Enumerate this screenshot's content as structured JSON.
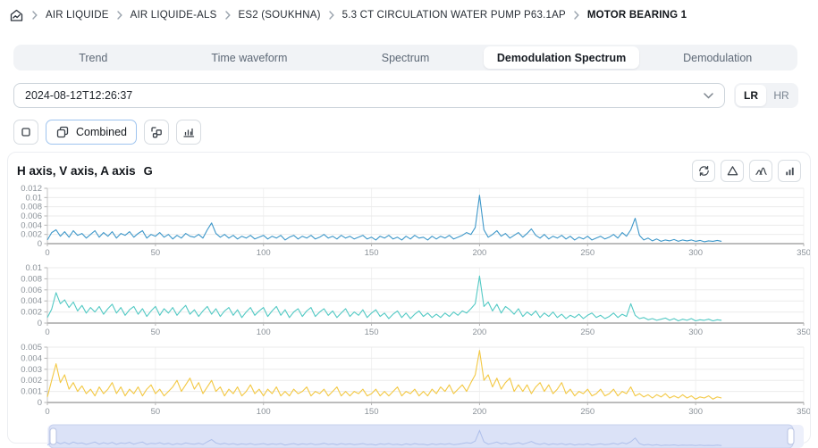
{
  "breadcrumb": {
    "items": [
      "AIR LIQUIDE",
      "AIR LIQUIDE-ALS",
      "ES2 (SOUKHNA)",
      "5.3 CT CIRCULATION WATER PUMP P63.1AP",
      "MOTOR BEARING 1"
    ]
  },
  "tabs": [
    {
      "label": "Trend",
      "active": false
    },
    {
      "label": "Time waveform",
      "active": false
    },
    {
      "label": "Spectrum",
      "active": false
    },
    {
      "label": "Demodulation Spectrum",
      "active": true
    },
    {
      "label": "Demodulation",
      "active": false
    }
  ],
  "datetime_select": {
    "value": "2024-08-12T12:26:37"
  },
  "resolution_toggle": {
    "options": [
      "LR",
      "HR"
    ],
    "selected": "LR"
  },
  "view_toolbar": {
    "combined_label": "Combined"
  },
  "chart_header": {
    "title": "H axis, V axis, A axis",
    "unit": "G"
  },
  "icons": {
    "breadcrumb_home": "home-chart",
    "crumb_separator": "chevron-right",
    "select_caret": "chevron-down",
    "view_buttons": [
      "single-view",
      "combined-view",
      "cascade-view",
      "waterfall-view"
    ],
    "header_actions": [
      "refresh",
      "triangle-alarm",
      "peaks-overlay",
      "bar-chart"
    ]
  },
  "colors": {
    "series_h": "#3d97c9",
    "series_v": "#52c9c4",
    "series_a": "#f3c843",
    "grid": "#ebebeb",
    "axis": "#a6a6a6",
    "tick_text": "#8b9299",
    "brush_fill": "#dbe2f7",
    "brush_border": "#c7d1ee",
    "brush_line": "#a9bbe9",
    "accent": "#9fc4ef"
  },
  "chart_data": [
    {
      "type": "line",
      "name": "H axis",
      "unit": "G",
      "color": "#3d97c9",
      "xlim": [
        0,
        350
      ],
      "xticks": [
        0,
        50,
        100,
        150,
        200,
        250,
        300,
        350
      ],
      "ymax": 0.012,
      "ytick_labels": [
        "0.012",
        "0.01",
        "0.008",
        "0.006",
        "0.004",
        "0.002",
        "0"
      ],
      "x_start": 0,
      "x_step": 2,
      "value_scale": 0.0001,
      "values": [
        8,
        24,
        30,
        16,
        26,
        14,
        28,
        18,
        22,
        12,
        20,
        28,
        14,
        24,
        16,
        26,
        12,
        22,
        18,
        26,
        14,
        22,
        28,
        12,
        20,
        16,
        24,
        14,
        20,
        10,
        18,
        12,
        22,
        16,
        14,
        20,
        12,
        30,
        45,
        22,
        14,
        20,
        12,
        18,
        10,
        16,
        12,
        18,
        10,
        14,
        18,
        10,
        16,
        12,
        18,
        8,
        14,
        18,
        10,
        16,
        12,
        18,
        10,
        14,
        20,
        12,
        16,
        10,
        18,
        12,
        16,
        10,
        14,
        18,
        10,
        14,
        8,
        16,
        12,
        18,
        10,
        14,
        8,
        16,
        10,
        18,
        12,
        14,
        8,
        16,
        10,
        16,
        12,
        18,
        10,
        14,
        18,
        24,
        20,
        35,
        105,
        30,
        14,
        20,
        28,
        16,
        22,
        12,
        18,
        24,
        14,
        22,
        32,
        18,
        12,
        20,
        10,
        16,
        12,
        18,
        10,
        16,
        8,
        14,
        10,
        16,
        8,
        12,
        16,
        10,
        14,
        20,
        12,
        24,
        16,
        30,
        55,
        18,
        8,
        12,
        6,
        10,
        5,
        8,
        6,
        9,
        5,
        8,
        6,
        8,
        5,
        7,
        4,
        6,
        5,
        7,
        5
      ],
      "notable_peaks": [
        {
          "x": 200,
          "y": 0.0105
        },
        {
          "x": 272,
          "y": 0.0055
        },
        {
          "x": 76,
          "y": 0.0045
        },
        {
          "x": 224,
          "y": 0.0032
        }
      ]
    },
    {
      "type": "line",
      "name": "V axis",
      "unit": "G",
      "color": "#52c9c4",
      "xlim": [
        0,
        350
      ],
      "xticks": [
        0,
        50,
        100,
        150,
        200,
        250,
        300,
        350
      ],
      "ymax": 0.01,
      "ytick_labels": [
        "0.01",
        "0.008",
        "0.006",
        "0.004",
        "0.002",
        "0"
      ],
      "x_start": 0,
      "x_step": 2,
      "value_scale": 0.0001,
      "values": [
        10,
        25,
        55,
        35,
        42,
        28,
        38,
        22,
        32,
        18,
        28,
        20,
        30,
        16,
        26,
        34,
        18,
        28,
        14,
        24,
        30,
        16,
        26,
        12,
        22,
        30,
        14,
        26,
        18,
        28,
        14,
        24,
        32,
        16,
        24,
        12,
        22,
        30,
        16,
        26,
        12,
        22,
        28,
        14,
        24,
        10,
        20,
        28,
        14,
        22,
        28,
        12,
        22,
        30,
        14,
        24,
        10,
        20,
        26,
        12,
        22,
        28,
        12,
        20,
        26,
        14,
        22,
        10,
        18,
        26,
        12,
        20,
        14,
        24,
        10,
        18,
        24,
        12,
        18,
        8,
        16,
        22,
        10,
        18,
        8,
        16,
        22,
        12,
        18,
        10,
        16,
        10,
        18,
        12,
        20,
        14,
        22,
        18,
        26,
        35,
        85,
        30,
        38,
        22,
        34,
        18,
        30,
        24,
        16,
        26,
        12,
        20,
        14,
        22,
        10,
        18,
        12,
        20,
        10,
        16,
        8,
        14,
        10,
        16,
        8,
        14,
        18,
        10,
        14,
        8,
        12,
        18,
        10,
        16,
        12,
        35,
        14,
        8,
        10,
        6,
        8,
        5,
        7,
        9,
        5,
        8,
        4,
        7,
        5,
        8,
        4,
        6,
        5,
        7,
        4,
        6,
        5
      ],
      "notable_peaks": [
        {
          "x": 200,
          "y": 0.0085
        },
        {
          "x": 4,
          "y": 0.0055
        },
        {
          "x": 270,
          "y": 0.0035
        }
      ]
    },
    {
      "type": "line",
      "name": "A axis",
      "unit": "G",
      "color": "#f3c843",
      "xlim": [
        0,
        350
      ],
      "xticks": [
        0,
        50,
        100,
        150,
        200,
        250,
        300,
        350
      ],
      "ymax": 0.005,
      "ytick_labels": [
        "0.005",
        "0.004",
        "0.003",
        "0.002",
        "0.001",
        "0"
      ],
      "x_start": 0,
      "x_step": 2,
      "value_scale": 0.0001,
      "values": [
        5,
        20,
        35,
        18,
        25,
        12,
        18,
        10,
        15,
        8,
        12,
        6,
        14,
        8,
        12,
        18,
        8,
        14,
        6,
        12,
        8,
        14,
        6,
        12,
        16,
        8,
        12,
        6,
        10,
        14,
        20,
        10,
        16,
        22,
        12,
        18,
        8,
        14,
        20,
        10,
        14,
        6,
        12,
        8,
        14,
        6,
        10,
        16,
        8,
        12,
        6,
        12,
        8,
        14,
        6,
        10,
        6,
        12,
        8,
        10,
        14,
        6,
        10,
        8,
        12,
        6,
        10,
        14,
        6,
        10,
        6,
        10,
        8,
        12,
        6,
        8,
        12,
        6,
        10,
        6,
        10,
        14,
        6,
        10,
        8,
        12,
        6,
        10,
        6,
        12,
        8,
        14,
        10,
        16,
        8,
        12,
        16,
        10,
        18,
        25,
        47,
        20,
        25,
        14,
        22,
        12,
        18,
        22,
        10,
        16,
        10,
        16,
        8,
        14,
        18,
        10,
        16,
        8,
        12,
        18,
        8,
        12,
        6,
        10,
        8,
        12,
        6,
        8,
        12,
        6,
        8,
        12,
        6,
        10,
        8,
        14,
        6,
        8,
        5,
        7,
        4,
        7,
        5,
        8,
        4,
        6,
        4,
        7,
        4,
        6,
        3,
        5,
        4,
        6,
        3,
        5,
        4
      ],
      "notable_peaks": [
        {
          "x": 200,
          "y": 0.0047
        },
        {
          "x": 4,
          "y": 0.0035
        }
      ]
    }
  ],
  "overview_brush": {
    "source_series": "H axis",
    "selection": "full-range"
  }
}
